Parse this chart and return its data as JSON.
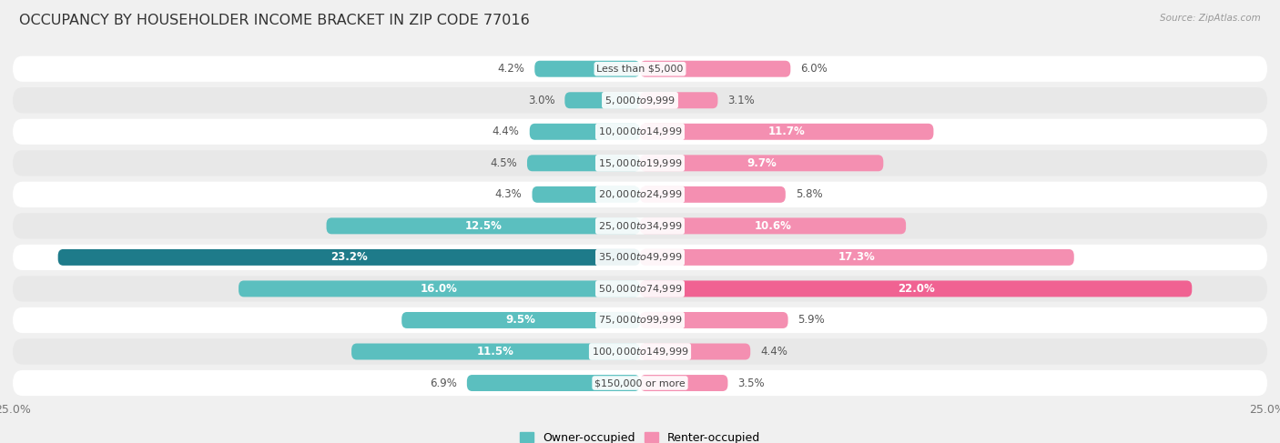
{
  "title": "OCCUPANCY BY HOUSEHOLDER INCOME BRACKET IN ZIP CODE 77016",
  "source": "Source: ZipAtlas.com",
  "categories": [
    "Less than $5,000",
    "$5,000 to $9,999",
    "$10,000 to $14,999",
    "$15,000 to $19,999",
    "$20,000 to $24,999",
    "$25,000 to $34,999",
    "$35,000 to $49,999",
    "$50,000 to $74,999",
    "$75,000 to $99,999",
    "$100,000 to $149,999",
    "$150,000 or more"
  ],
  "owner_values": [
    4.2,
    3.0,
    4.4,
    4.5,
    4.3,
    12.5,
    23.2,
    16.0,
    9.5,
    11.5,
    6.9
  ],
  "renter_values": [
    6.0,
    3.1,
    11.7,
    9.7,
    5.8,
    10.6,
    17.3,
    22.0,
    5.9,
    4.4,
    3.5
  ],
  "owner_color_normal": "#5BBFBF",
  "owner_color_max": "#1E7B8A",
  "renter_color_normal": "#F48FB1",
  "renter_color_max": "#F06292",
  "xlim": 25.0,
  "bar_height": 0.52,
  "background_color": "#f0f0f0",
  "row_color_light": "#ffffff",
  "row_color_dark": "#e8e8e8",
  "title_fontsize": 11.5,
  "label_fontsize": 8.5,
  "tick_fontsize": 9,
  "legend_fontsize": 9,
  "category_fontsize": 8.0,
  "inside_label_threshold_owner": 8.0,
  "inside_label_threshold_renter": 8.0
}
